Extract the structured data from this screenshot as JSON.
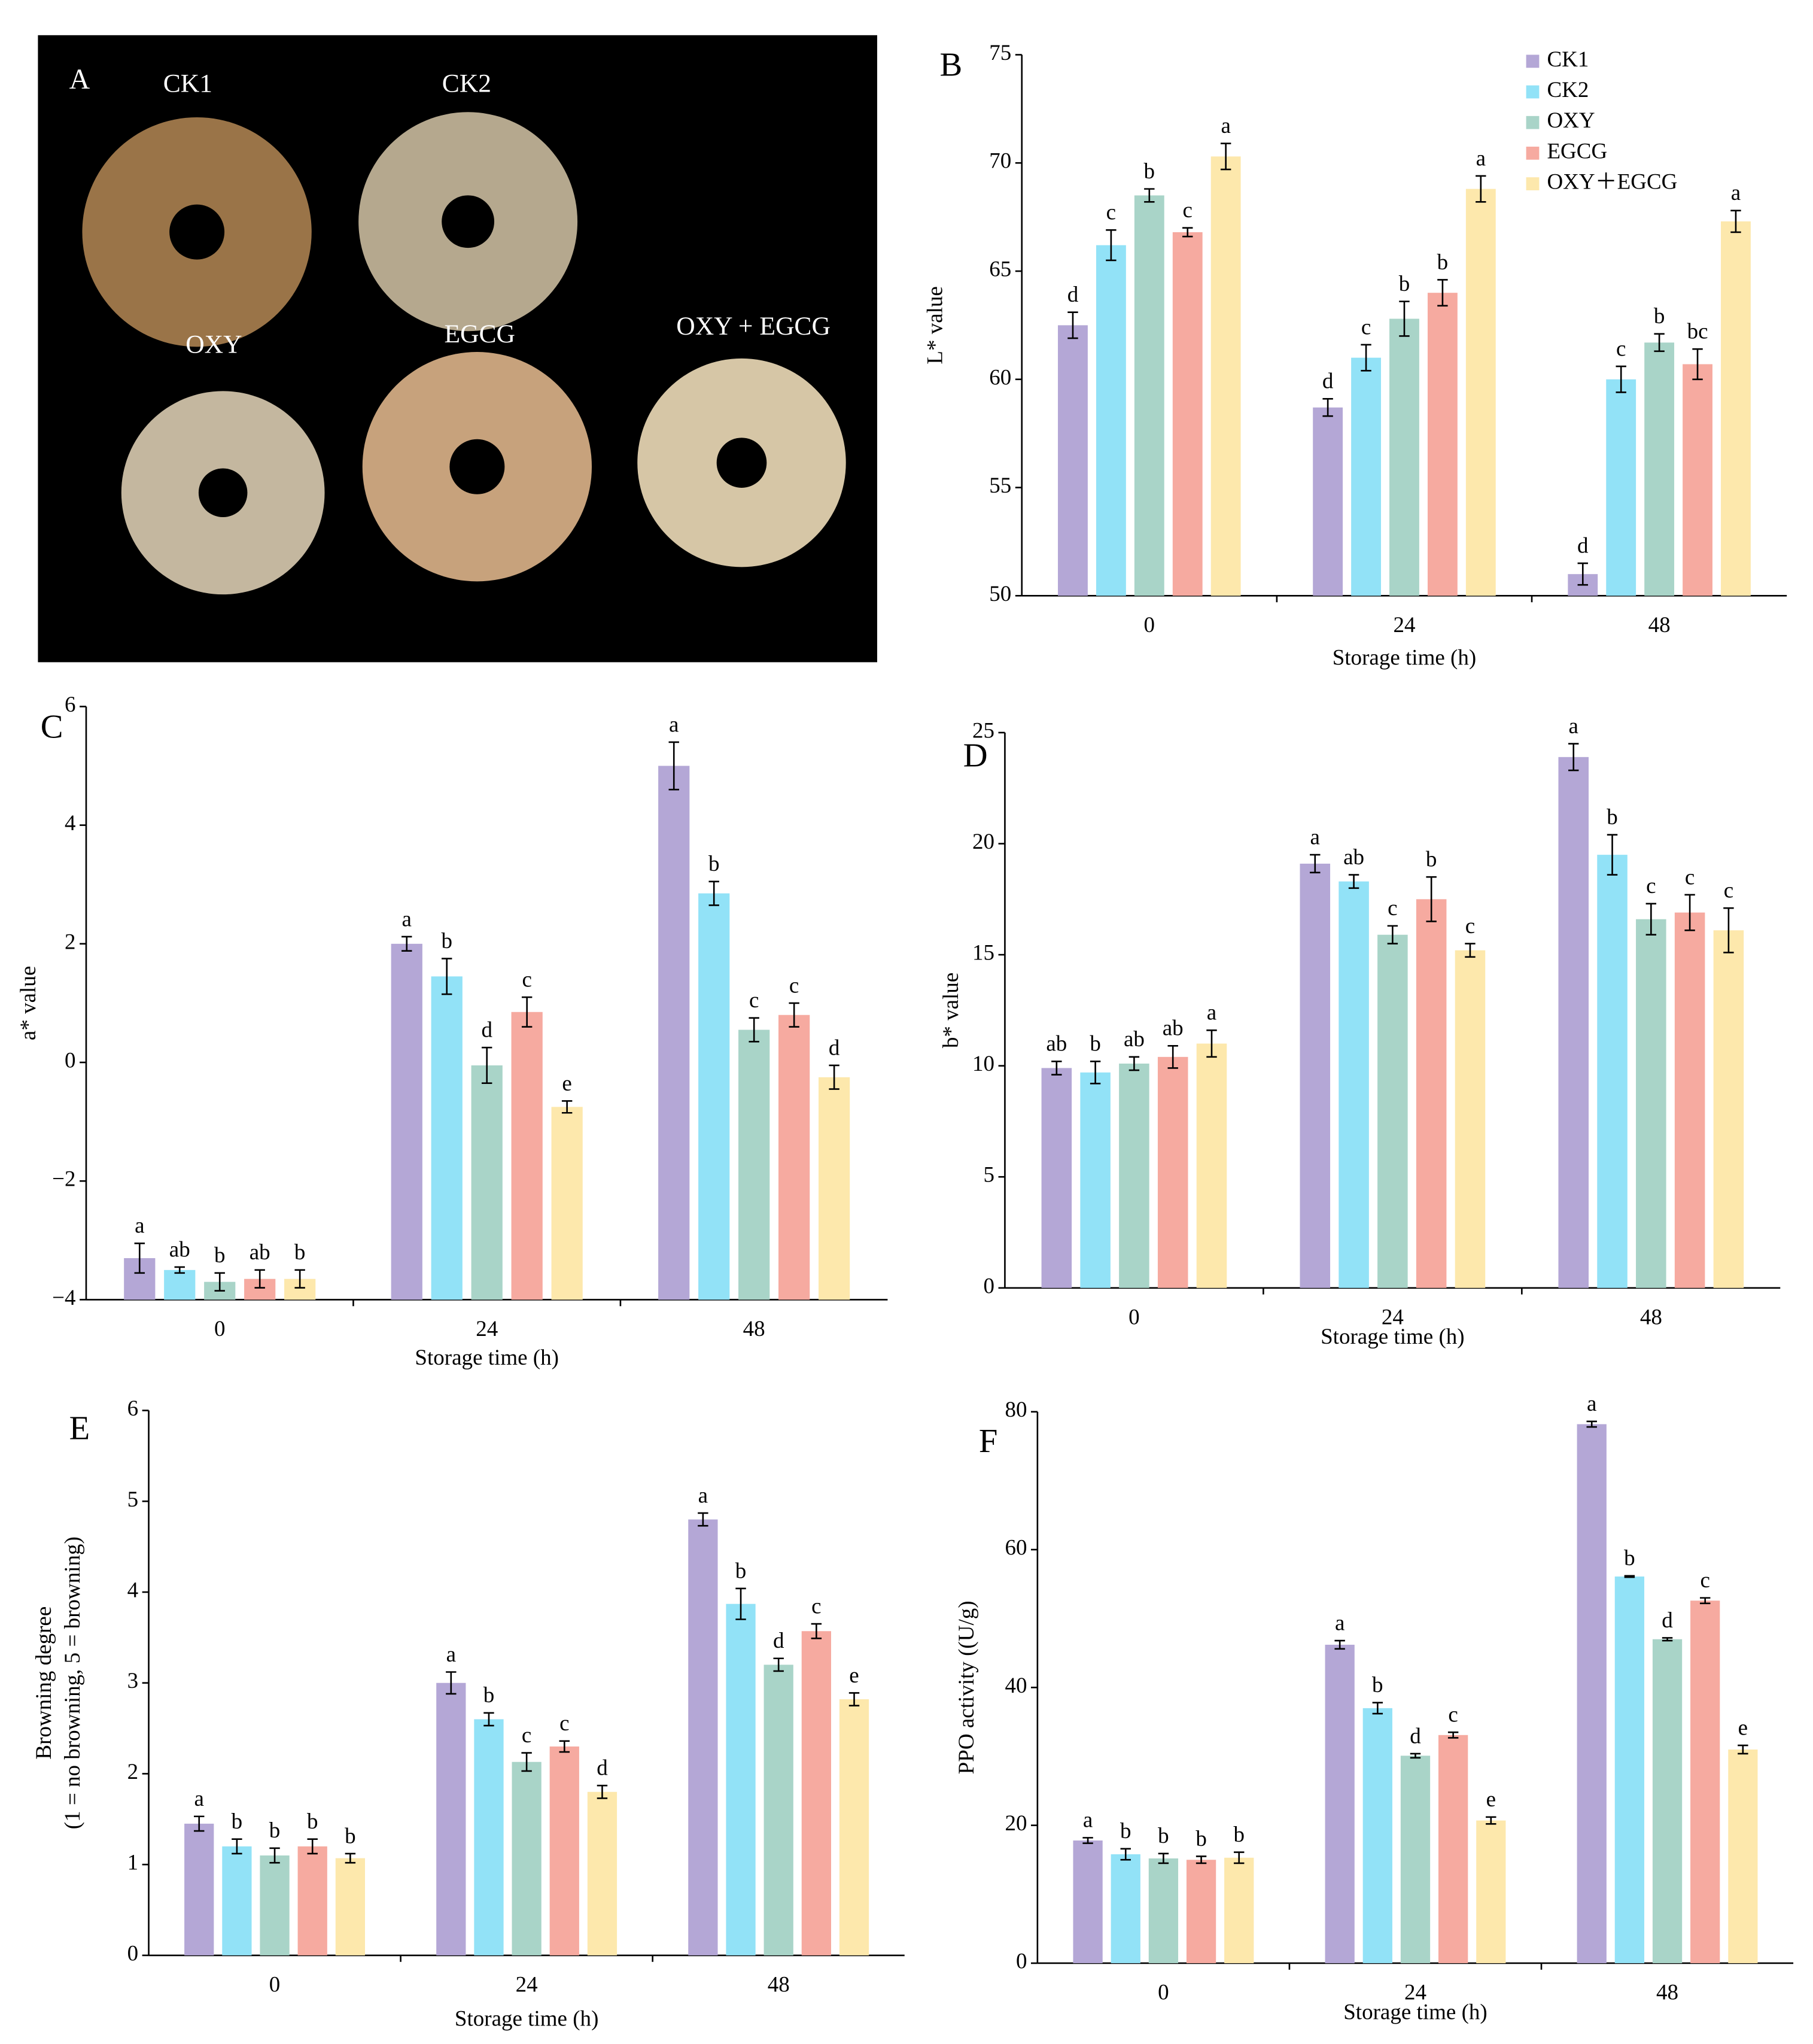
{
  "photo": {
    "panel_label": "A",
    "labels": [
      "CK1",
      "CK2",
      "OXY",
      "EGCG",
      "OXY + EGCG"
    ]
  },
  "chart_data": [
    {
      "type": "bar",
      "panel_label": "B",
      "ylabel": "L* value",
      "xlabel": "Storage time  (h)",
      "categories": [
        "0",
        "24",
        "48"
      ],
      "ylim": [
        50,
        75
      ],
      "yticks": [
        50,
        55,
        60,
        65,
        70,
        75
      ],
      "legend": "upper right",
      "series": [
        {
          "name": "CK1",
          "color": "#b4a7d6",
          "values": [
            62.5,
            58.7,
            51.0
          ],
          "errors": [
            0.6,
            0.4,
            0.5
          ],
          "letters": [
            "d",
            "d",
            "d"
          ]
        },
        {
          "name": "CK2",
          "color": "#92e2f7",
          "values": [
            66.2,
            61.0,
            60.0
          ],
          "errors": [
            0.7,
            0.6,
            0.6
          ],
          "letters": [
            "c",
            "c",
            "c"
          ]
        },
        {
          "name": "OXY",
          "color": "#a9d4c8",
          "values": [
            68.5,
            62.8,
            61.7
          ],
          "errors": [
            0.3,
            0.8,
            0.4
          ],
          "letters": [
            "b",
            "b",
            "b"
          ]
        },
        {
          "name": "EGCG",
          "color": "#f6aaa0",
          "values": [
            66.8,
            64.0,
            60.7
          ],
          "errors": [
            0.2,
            0.6,
            0.7
          ],
          "letters": [
            "c",
            "b",
            "bc"
          ]
        },
        {
          "name": "OXY＋EGCG",
          "color": "#fde8ac",
          "values": [
            70.3,
            68.8,
            67.3
          ],
          "errors": [
            0.6,
            0.6,
            0.5
          ],
          "letters": [
            "a",
            "a",
            "a"
          ]
        }
      ]
    },
    {
      "type": "bar",
      "panel_label": "C",
      "ylabel": "a* value",
      "xlabel": "Storage time  (h)",
      "categories": [
        "0",
        "24",
        "48"
      ],
      "ylim": [
        -4,
        6
      ],
      "yticks": [
        {
          "value": -4,
          "label": "−4"
        },
        {
          "value": -2,
          "label": "−2"
        },
        0,
        2,
        4,
        6
      ],
      "series": [
        {
          "color": "#b4a7d6",
          "values": [
            -3.3,
            2.0,
            5.0
          ],
          "errors": [
            0.25,
            0.12,
            0.4
          ],
          "letters": [
            "a",
            "a",
            "a"
          ]
        },
        {
          "color": "#92e2f7",
          "values": [
            -3.5,
            1.45,
            2.85
          ],
          "errors": [
            0.05,
            0.3,
            0.2
          ],
          "letters": [
            "ab",
            "b",
            "b"
          ]
        },
        {
          "color": "#a9d4c8",
          "values": [
            -3.7,
            -0.05,
            0.55
          ],
          "errors": [
            0.15,
            0.3,
            0.2
          ],
          "letters": [
            "b",
            "d",
            "c"
          ]
        },
        {
          "color": "#f6aaa0",
          "values": [
            -3.65,
            0.85,
            0.8
          ],
          "errors": [
            0.15,
            0.25,
            0.2
          ],
          "letters": [
            "ab",
            "c",
            "c"
          ]
        },
        {
          "color": "#fde8ac",
          "values": [
            -3.65,
            -0.75,
            -0.25
          ],
          "errors": [
            0.15,
            0.1,
            0.2
          ],
          "letters": [
            "b",
            "e",
            "d"
          ]
        }
      ]
    },
    {
      "type": "bar",
      "panel_label": "D",
      "ylabel": "b* value",
      "xlabel": "Storage time  (h)",
      "categories": [
        "0",
        "24",
        "48"
      ],
      "ylim": [
        0,
        25
      ],
      "yticks": [
        0,
        5,
        10,
        15,
        20,
        25
      ],
      "series": [
        {
          "color": "#b4a7d6",
          "values": [
            9.9,
            19.1,
            23.9
          ],
          "errors": [
            0.3,
            0.4,
            0.6
          ],
          "letters": [
            "ab",
            "a",
            "a"
          ]
        },
        {
          "color": "#92e2f7",
          "values": [
            9.7,
            18.3,
            19.5
          ],
          "errors": [
            0.5,
            0.3,
            0.9
          ],
          "letters": [
            "b",
            "ab",
            "b"
          ]
        },
        {
          "color": "#a9d4c8",
          "values": [
            10.1,
            15.9,
            16.6
          ],
          "errors": [
            0.3,
            0.4,
            0.7
          ],
          "letters": [
            "ab",
            "c",
            "c"
          ]
        },
        {
          "color": "#f6aaa0",
          "values": [
            10.4,
            17.5,
            16.9
          ],
          "errors": [
            0.5,
            1.0,
            0.8
          ],
          "letters": [
            "ab",
            "b",
            "c"
          ]
        },
        {
          "color": "#fde8ac",
          "values": [
            11.0,
            15.2,
            16.1
          ],
          "errors": [
            0.6,
            0.3,
            1.0
          ],
          "letters": [
            "a",
            "c",
            "c"
          ]
        }
      ]
    },
    {
      "type": "bar",
      "panel_label": "E",
      "ylabel": [
        "Browning degree",
        "(1 = no browning, 5 = browning)"
      ],
      "xlabel": "Storage time  (h)",
      "categories": [
        "0",
        "24",
        "48"
      ],
      "ylim": [
        0,
        6
      ],
      "yticks": [
        0,
        1,
        2,
        3,
        4,
        5,
        6
      ],
      "series": [
        {
          "color": "#b4a7d6",
          "values": [
            1.45,
            3.0,
            4.8
          ],
          "errors": [
            0.08,
            0.12,
            0.07
          ],
          "letters": [
            "a",
            "a",
            "a"
          ]
        },
        {
          "color": "#92e2f7",
          "values": [
            1.2,
            2.6,
            3.87
          ],
          "errors": [
            0.08,
            0.07,
            0.17
          ],
          "letters": [
            "b",
            "b",
            "b"
          ]
        },
        {
          "color": "#a9d4c8",
          "values": [
            1.1,
            2.13,
            3.2
          ],
          "errors": [
            0.08,
            0.1,
            0.07
          ],
          "letters": [
            "b",
            "c",
            "d"
          ]
        },
        {
          "color": "#f6aaa0",
          "values": [
            1.2,
            2.3,
            3.57
          ],
          "errors": [
            0.08,
            0.06,
            0.08
          ],
          "letters": [
            "b",
            "c",
            "c"
          ]
        },
        {
          "color": "#fde8ac",
          "values": [
            1.07,
            1.8,
            2.82
          ],
          "errors": [
            0.05,
            0.07,
            0.07
          ],
          "letters": [
            "b",
            "d",
            "e"
          ]
        }
      ]
    },
    {
      "type": "bar",
      "panel_label": "F",
      "ylabel": "PPO activity ((U/g)",
      "xlabel": "Storage time  (h)",
      "categories": [
        "0",
        "24",
        "48"
      ],
      "ylim": [
        0,
        80
      ],
      "yticks": [
        0,
        20,
        40,
        60,
        80
      ],
      "series": [
        {
          "color": "#b4a7d6",
          "values": [
            17.8,
            46.2,
            78.2
          ],
          "errors": [
            0.4,
            0.6,
            0.4
          ],
          "letters": [
            "a",
            "a",
            "a"
          ]
        },
        {
          "color": "#92e2f7",
          "values": [
            15.8,
            37.0,
            56.1
          ],
          "errors": [
            0.8,
            0.8,
            0.1
          ],
          "letters": [
            "b",
            "b",
            "b"
          ]
        },
        {
          "color": "#a9d4c8",
          "values": [
            15.2,
            30.1,
            47.0
          ],
          "errors": [
            0.7,
            0.3,
            0.2
          ],
          "letters": [
            "b",
            "d",
            "d"
          ]
        },
        {
          "color": "#f6aaa0",
          "values": [
            15.0,
            33.1,
            52.6
          ],
          "errors": [
            0.5,
            0.4,
            0.4
          ],
          "letters": [
            "b",
            "c",
            "c"
          ]
        },
        {
          "color": "#fde8ac",
          "values": [
            15.3,
            20.7,
            31.0
          ],
          "errors": [
            0.8,
            0.5,
            0.6
          ],
          "letters": [
            "b",
            "e",
            "e"
          ]
        }
      ]
    }
  ]
}
